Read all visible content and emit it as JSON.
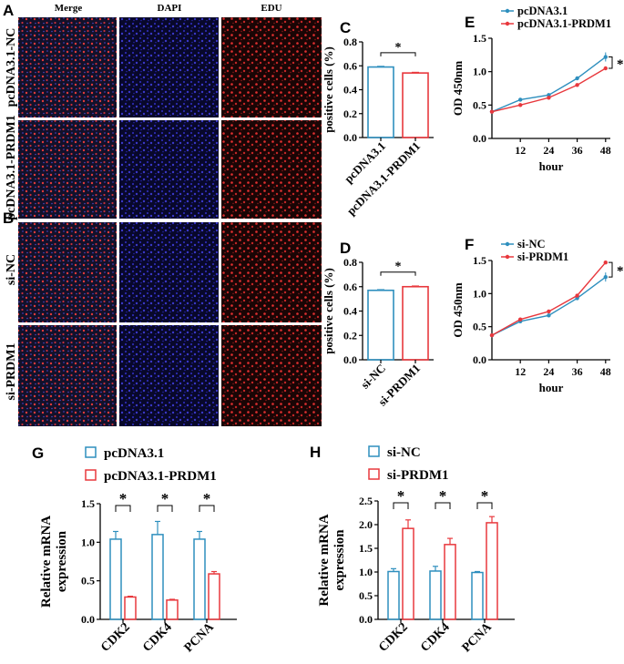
{
  "figure": {
    "panel_labels": {
      "A": "A",
      "B": "B",
      "C": "C",
      "D": "D",
      "E": "E",
      "F": "F",
      "G": "G",
      "H": "H"
    },
    "micro": {
      "columns": [
        "Merge",
        "DAPI",
        "EDU"
      ],
      "rows_A": [
        "pcDNA3.1-NC",
        "pcDNA3.1-PRDM1"
      ],
      "rows_B": [
        "si-NC",
        "si-PRDM1"
      ]
    }
  },
  "colors": {
    "blue": "#2E8FBE",
    "red": "#E8383D",
    "axis": "#000000"
  },
  "chart_data": [
    {
      "id": "C",
      "type": "bar",
      "categories": [
        "pcDNA3.1",
        "pcDNA3.1-PRDM1"
      ],
      "values": [
        0.59,
        0.54
      ],
      "errors": [
        0.005,
        0.005
      ],
      "ylabel": "positive cells (%)",
      "ylim": [
        0,
        0.8
      ],
      "yticks": [
        0.0,
        0.2,
        0.4,
        0.6,
        0.8
      ],
      "significance": "*"
    },
    {
      "id": "D",
      "type": "bar",
      "categories": [
        "si-NC",
        "si-PRDM1"
      ],
      "values": [
        0.57,
        0.6
      ],
      "errors": [
        0.005,
        0.005
      ],
      "ylabel": "positive cells (%)",
      "ylim": [
        0,
        0.8
      ],
      "yticks": [
        0.0,
        0.2,
        0.4,
        0.6,
        0.8
      ],
      "significance": "*"
    },
    {
      "id": "E",
      "type": "line",
      "x": [
        0,
        12,
        24,
        36,
        48
      ],
      "xticks": [
        12,
        24,
        36,
        48
      ],
      "series": [
        {
          "name": "pcDNA3.1",
          "values": [
            0.4,
            0.58,
            0.65,
            0.9,
            1.22
          ]
        },
        {
          "name": "pcDNA3.1-PRDM1",
          "values": [
            0.4,
            0.5,
            0.61,
            0.8,
            1.05
          ]
        }
      ],
      "xlabel": "hour",
      "ylabel": "OD 450nm",
      "xlim": [
        0,
        50
      ],
      "ylim": [
        0,
        1.5
      ],
      "yticks": [
        0.0,
        0.5,
        1.0,
        1.5
      ],
      "significance": "*"
    },
    {
      "id": "F",
      "type": "line",
      "x": [
        0,
        12,
        24,
        36,
        48
      ],
      "xticks": [
        12,
        24,
        36,
        48
      ],
      "series": [
        {
          "name": "si-NC",
          "values": [
            0.37,
            0.58,
            0.67,
            0.93,
            1.25
          ]
        },
        {
          "name": "si-PRDM1",
          "values": [
            0.37,
            0.61,
            0.73,
            0.97,
            1.47
          ]
        }
      ],
      "xlabel": "hour",
      "ylabel": "OD 450nm",
      "xlim": [
        0,
        50
      ],
      "ylim": [
        0,
        1.5
      ],
      "yticks": [
        0.0,
        0.5,
        1.0,
        1.5
      ],
      "significance": "*"
    },
    {
      "id": "G",
      "type": "bar",
      "categories": [
        "CDK2",
        "CDK4",
        "PCNA"
      ],
      "series": [
        {
          "name": "pcDNA3.1",
          "values": [
            1.04,
            1.1,
            1.04
          ],
          "errors": [
            0.1,
            0.17,
            0.1
          ]
        },
        {
          "name": "pcDNA3.1-PRDM1",
          "values": [
            0.29,
            0.25,
            0.59
          ],
          "errors": [
            0.01,
            0.01,
            0.03
          ]
        }
      ],
      "ylabel": "Relative mRNA expression",
      "ylim": [
        0,
        1.5
      ],
      "yticks": [
        0.0,
        0.5,
        1.0,
        1.5
      ],
      "significance": [
        "*",
        "*",
        "*"
      ]
    },
    {
      "id": "H",
      "type": "bar",
      "categories": [
        "CDK2",
        "CDK4",
        "PCNA"
      ],
      "series": [
        {
          "name": "si-NC",
          "values": [
            1.01,
            1.02,
            0.99
          ],
          "errors": [
            0.06,
            0.1,
            0.02
          ]
        },
        {
          "name": "si-PRDM1",
          "values": [
            1.92,
            1.58,
            2.04
          ],
          "errors": [
            0.18,
            0.13,
            0.13
          ]
        }
      ],
      "ylabel": "Relative mRNA expression",
      "ylim": [
        0,
        2.5
      ],
      "yticks": [
        0.0,
        0.5,
        1.0,
        1.5,
        2.0,
        2.5
      ],
      "significance": [
        "*",
        "*",
        "*"
      ]
    }
  ]
}
